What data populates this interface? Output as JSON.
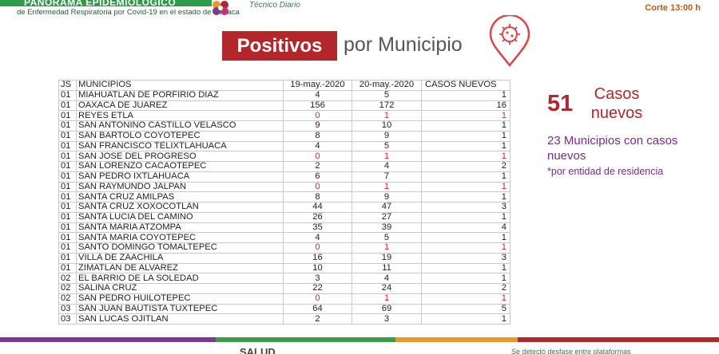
{
  "header": {
    "banner_text": "PANORAMA EPIDEMIOLÓGICO",
    "subtitle": "de Enfermedad Respiratoria por Covid-19 en el estado de Oaxaca",
    "center_caption": "Técnico Diario",
    "corte": "Corte 13:00 h"
  },
  "title": {
    "highlight": "Positivos",
    "rest": "por Municipio"
  },
  "table": {
    "headers": [
      "JS",
      "MUNICIPIOS",
      "19-may.-2020",
      "20-may.-2020",
      "CASOS NUEVOS"
    ],
    "rows": [
      {
        "js": "01",
        "mun": "MIAHUATLAN DE PORFIRIO DIAZ",
        "d1": "4",
        "d2": "5",
        "new": "1",
        "red": false
      },
      {
        "js": "01",
        "mun": "OAXACA DE JUAREZ",
        "d1": "156",
        "d2": "172",
        "new": "16",
        "red": false
      },
      {
        "js": "01",
        "mun": "REYES ETLA",
        "d1": "0",
        "d2": "1",
        "new": "1",
        "red": true
      },
      {
        "js": "01",
        "mun": "SAN ANTONINO CASTILLO VELASCO",
        "d1": "9",
        "d2": "10",
        "new": "1",
        "red": false
      },
      {
        "js": "01",
        "mun": "SAN BARTOLO COYOTEPEC",
        "d1": "8",
        "d2": "9",
        "new": "1",
        "red": false
      },
      {
        "js": "01",
        "mun": "SAN FRANCISCO TELIXTLAHUACA",
        "d1": "4",
        "d2": "5",
        "new": "1",
        "red": false
      },
      {
        "js": "01",
        "mun": "SAN JOSE DEL PROGRESO",
        "d1": "0",
        "d2": "1",
        "new": "1",
        "red": true
      },
      {
        "js": "01",
        "mun": "SAN LORENZO CACAOTEPEC",
        "d1": "2",
        "d2": "4",
        "new": "2",
        "red": false
      },
      {
        "js": "01",
        "mun": "SAN PEDRO IXTLAHUACA",
        "d1": "6",
        "d2": "7",
        "new": "1",
        "red": false
      },
      {
        "js": "01",
        "mun": "SAN RAYMUNDO JALPAN",
        "d1": "0",
        "d2": "1",
        "new": "1",
        "red": true
      },
      {
        "js": "01",
        "mun": "SANTA CRUZ AMILPAS",
        "d1": "8",
        "d2": "9",
        "new": "1",
        "red": false
      },
      {
        "js": "01",
        "mun": "SANTA CRUZ XOXOCOTLAN",
        "d1": "44",
        "d2": "47",
        "new": "3",
        "red": false
      },
      {
        "js": "01",
        "mun": "SANTA LUCIA DEL CAMINO",
        "d1": "26",
        "d2": "27",
        "new": "1",
        "red": false
      },
      {
        "js": "01",
        "mun": "SANTA MARIA ATZOMPA",
        "d1": "35",
        "d2": "39",
        "new": "4",
        "red": false
      },
      {
        "js": "01",
        "mun": "SANTA MARIA COYOTEPEC",
        "d1": "4",
        "d2": "5",
        "new": "1",
        "red": false
      },
      {
        "js": "01",
        "mun": "SANTO DOMINGO TOMALTEPEC",
        "d1": "0",
        "d2": "1",
        "new": "1",
        "red": true
      },
      {
        "js": "01",
        "mun": "VILLA DE ZAACHILA",
        "d1": "16",
        "d2": "19",
        "new": "3",
        "red": false
      },
      {
        "js": "01",
        "mun": "ZIMATLAN DE ALVAREZ",
        "d1": "10",
        "d2": "11",
        "new": "1",
        "red": false
      },
      {
        "js": "02",
        "mun": "EL BARRIO DE LA SOLEDAD",
        "d1": "3",
        "d2": "4",
        "new": "1",
        "red": false
      },
      {
        "js": "02",
        "mun": "SALINA CRUZ",
        "d1": "22",
        "d2": "24",
        "new": "2",
        "red": false
      },
      {
        "js": "02",
        "mun": "SAN PEDRO HUILOTEPEC",
        "d1": "0",
        "d2": "1",
        "new": "1",
        "red": true
      },
      {
        "js": "03",
        "mun": "SAN JUAN BAUTISTA TUXTEPEC",
        "d1": "64",
        "d2": "69",
        "new": "5",
        "red": false
      },
      {
        "js": "03",
        "mun": "SAN LUCAS OJITLAN",
        "d1": "2",
        "d2": "3",
        "new": "1",
        "red": false
      }
    ]
  },
  "summary": {
    "count": "51",
    "count_label": "Casos nuevos",
    "municipios": "23 Municipios con casos nuevos",
    "note": "*por entidad de residencia"
  },
  "footer": {
    "logo_text": "SALUD",
    "right_text": "Se detectó desfase entre plataformas"
  },
  "colors": {
    "accent_red": "#b3262b",
    "purple": "#7a2a8a",
    "green": "#2e9b4a"
  }
}
